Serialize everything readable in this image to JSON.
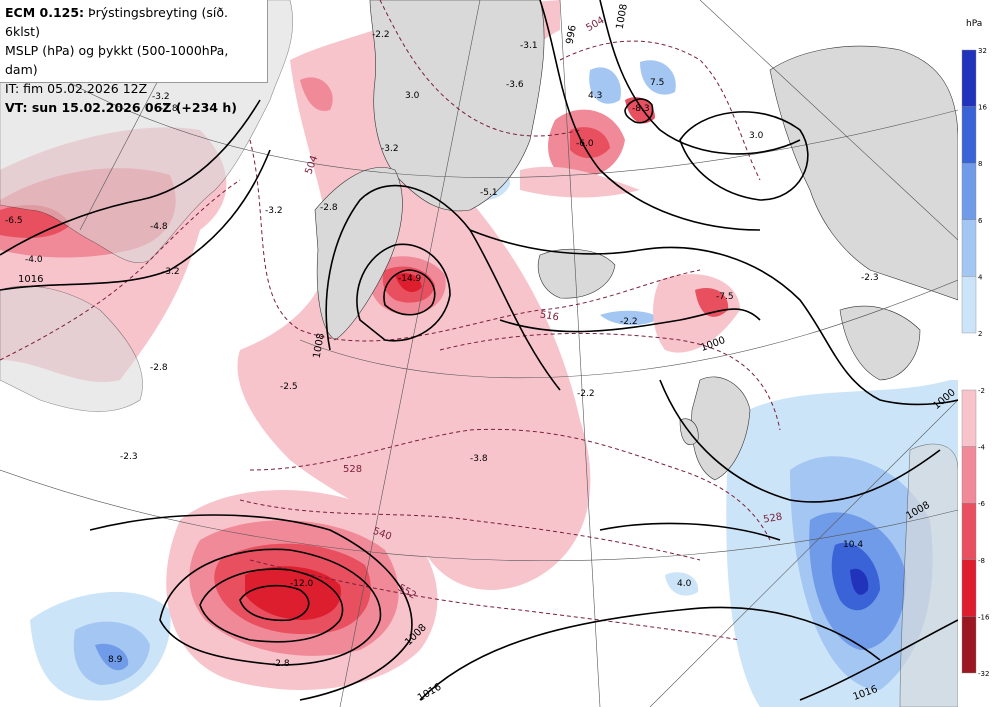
{
  "info": {
    "line1_bold": "ECM 0.125:",
    "line1_rest": " Þrýstingsbreyting (síð. 6klst)",
    "line2": "MSLP (hPa) og þykkt (500-1000hPa, dam)",
    "line3": "IT: fim 05.02.2026 12Z",
    "line4": "VT: sun 15.02.2026 06Z (+234 h)"
  },
  "legend": {
    "unit": "hPa",
    "blue_ticks": [
      "32",
      "16",
      "8",
      "6",
      "4",
      "2"
    ],
    "red_ticks": [
      "-2",
      "-4",
      "-6",
      "-8",
      "-16",
      "-32"
    ],
    "blue_colors": [
      "#2233bb",
      "#3b63d8",
      "#6f9be8",
      "#a4c6f2",
      "#cce4f8"
    ],
    "red_colors": [
      "#f8c4cc",
      "#f08a98",
      "#e85060",
      "#dc1e2e",
      "#9b1822"
    ]
  },
  "map": {
    "change_labels": [
      "-2.2",
      "3.0",
      "-3.2",
      "-2.8",
      "-3.2",
      "-6.5",
      "-4.0",
      "-4.8",
      "-3.2",
      "-3.2",
      "-2.8",
      "-3.6",
      "-5.1",
      "-3.1",
      "-2.8",
      "-2.5",
      "-14.9",
      "-3.8",
      "-2.3",
      "-12.0",
      "8.9",
      "-2.8",
      "4.3",
      "7.5",
      "-8.3",
      "-6.0",
      "3.0",
      "-7.5",
      "-2.2",
      "-2.2",
      "-2.3",
      "4.0",
      "10.4"
    ],
    "mslp_labels": [
      "1016",
      "1008",
      "1000",
      "1008",
      "1016",
      "996",
      "1008",
      "1000",
      "1008",
      "1016"
    ],
    "thickness_labels": [
      "504",
      "516",
      "528",
      "540",
      "552",
      "528",
      "504"
    ]
  }
}
